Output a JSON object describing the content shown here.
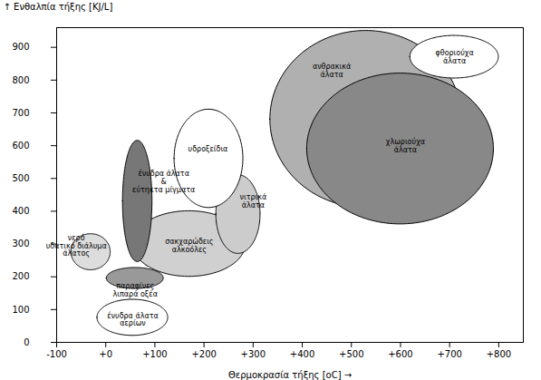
{
  "chart_data": {
    "type": "ellipse",
    "xlabel": "Θερμοκρασία τήξης [oC]",
    "ylabel": "Ενθαλπία τήξης [KJ/L]",
    "xlim": [
      -100,
      850
    ],
    "ylim": [
      0,
      960
    ],
    "xticks": [
      -100,
      {
        "value": 0,
        "label": "+0"
      },
      {
        "value": 100,
        "label": "+100"
      },
      {
        "value": 200,
        "label": "+200"
      },
      {
        "value": 300,
        "label": "+300"
      },
      {
        "value": 400,
        "label": "+400"
      },
      {
        "value": 500,
        "label": "+500"
      },
      {
        "value": 600,
        "label": "+600"
      },
      {
        "value": 700,
        "label": "+700"
      },
      {
        "value": 800,
        "label": "+800"
      }
    ],
    "yticks": [
      0,
      100,
      200,
      300,
      400,
      500,
      600,
      700,
      800,
      900
    ],
    "ellipses": [
      {
        "cx": 530,
        "cy": 680,
        "rx": 195,
        "ry": 270,
        "color": "#b0b0b0"
      },
      {
        "cx": 600,
        "cy": 590,
        "rx": 190,
        "ry": 230,
        "color": "#888888"
      },
      {
        "cx": 170,
        "cy": 300,
        "rx": 115,
        "ry": 100,
        "color": "#d0d0d0"
      },
      {
        "cx": 710,
        "cy": 870,
        "rx": 90,
        "ry": 65,
        "color": "#ffffff"
      },
      {
        "cx": 270,
        "cy": 390,
        "rx": 45,
        "ry": 120,
        "color": "#cccccc"
      },
      {
        "cx": 210,
        "cy": 560,
        "rx": 70,
        "ry": 150,
        "color": "#ffffff"
      },
      {
        "cx": 55,
        "cy": 75,
        "rx": 72,
        "ry": 55,
        "color": "#ffffff"
      },
      {
        "cx": -30,
        "cy": 275,
        "rx": 40,
        "ry": 55,
        "color": "#dddddd"
      },
      {
        "cx": 65,
        "cy": 430,
        "rx": 30,
        "ry": 185,
        "color": "#777777"
      },
      {
        "cx": 60,
        "cy": 195,
        "rx": 58,
        "ry": 32,
        "color": "#999999"
      }
    ],
    "annotations": [
      {
        "text": "ανθρακικά\nάλατα",
        "x": 460,
        "y": 830
      },
      {
        "text": "χλωριούχα\nάλατα",
        "x": 610,
        "y": 600
      },
      {
        "text": "φθοριούχα\nάλατα",
        "x": 710,
        "y": 870
      },
      {
        "text": "υδροξείδια",
        "x": 208,
        "y": 590
      },
      {
        "text": "νιτρικά\nάλατα",
        "x": 300,
        "y": 430
      },
      {
        "text": "σακχαρώδεις\nαλκοόλες",
        "x": 170,
        "y": 295
      },
      {
        "text": "ένυδρα άλατα\n&\nεύτηκτα μίγματα",
        "x": 118,
        "y": 490
      },
      {
        "text": "νερό\nυδατικό διάλυμα\nάλατος",
        "x": -60,
        "y": 295
      },
      {
        "text": "παραφίνες\nλιπαρά οξέα",
        "x": 60,
        "y": 160
      },
      {
        "text": "ένυδρα άλατα\nαερίων",
        "x": 55,
        "y": 70
      }
    ]
  }
}
